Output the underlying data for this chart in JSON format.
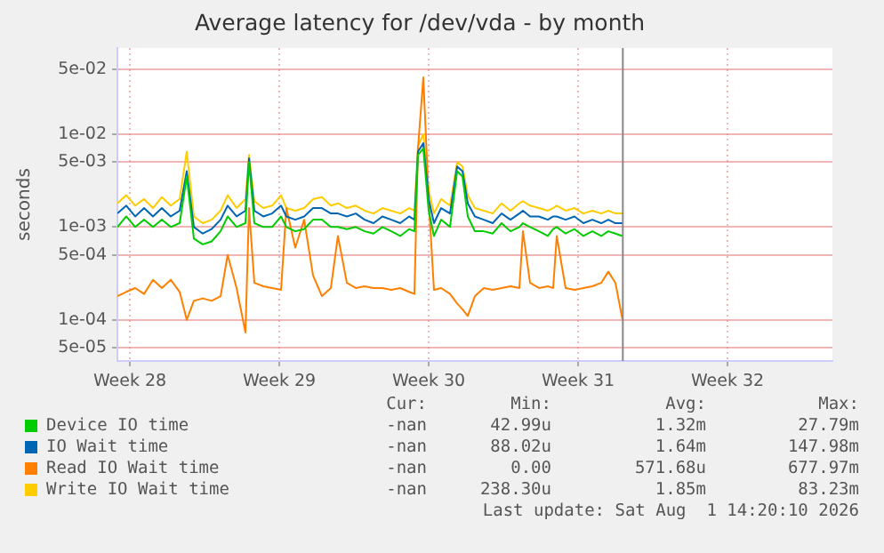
{
  "chart_data": {
    "type": "line",
    "title": "Average latency for /dev/vda - by month",
    "ylabel": "seconds",
    "log": "y",
    "grid": true,
    "legend": "bottom",
    "marker": "none",
    "line_style": "solid",
    "x": [
      "2026-07-08T22:00",
      "2026-07-09T08:00",
      "2026-07-09T18:00",
      "2026-07-10T04:00",
      "2026-07-10T14:00",
      "2026-07-11T00:00",
      "2026-07-11T10:00",
      "2026-07-11T20:00",
      "2026-07-12T04:00",
      "2026-07-12T12:00",
      "2026-07-12T22:00",
      "2026-07-13T08:00",
      "2026-07-13T18:00",
      "2026-07-14T02:00",
      "2026-07-14T12:00",
      "2026-07-14T22:00",
      "2026-07-15T02:00",
      "2026-07-15T08:00",
      "2026-07-15T18:00",
      "2026-07-16T04:00",
      "2026-07-16T14:00",
      "2026-07-16T20:00",
      "2026-07-17T06:00",
      "2026-07-17T16:00",
      "2026-07-18T02:00",
      "2026-07-18T12:00",
      "2026-07-18T22:00",
      "2026-07-19T06:00",
      "2026-07-19T16:00",
      "2026-07-20T02:00",
      "2026-07-20T12:00",
      "2026-07-20T22:00",
      "2026-07-21T08:00",
      "2026-07-21T18:00",
      "2026-07-22T04:00",
      "2026-07-22T14:00",
      "2026-07-22T20:00",
      "2026-07-23T00:00",
      "2026-07-23T06:00",
      "2026-07-23T12:00",
      "2026-07-23T18:00",
      "2026-07-24T02:00",
      "2026-07-24T12:00",
      "2026-07-24T20:00",
      "2026-07-25T02:00",
      "2026-07-25T08:00",
      "2026-07-25T16:00",
      "2026-07-26T02:00",
      "2026-07-26T12:00",
      "2026-07-26T22:00",
      "2026-07-27T08:00",
      "2026-07-27T18:00",
      "2026-07-27T22:00",
      "2026-07-28T06:00",
      "2026-07-28T16:00",
      "2026-07-29T02:00",
      "2026-07-29T08:00",
      "2026-07-29T12:00",
      "2026-07-29T22:00",
      "2026-07-30T08:00",
      "2026-07-30T18:00",
      "2026-07-31T04:00",
      "2026-07-31T14:00",
      "2026-07-31T22:00",
      "2026-08-01T06:00",
      "2026-08-01T14:00"
    ],
    "xlim": [
      "2026-07-08T22:00",
      "2026-08-11T10:00"
    ],
    "xticks": [
      {
        "value": "2026-07-09T12:00",
        "label": "Week 28"
      },
      {
        "value": "2026-07-16T12:00",
        "label": "Week 29"
      },
      {
        "value": "2026-07-23T12:00",
        "label": "Week 30"
      },
      {
        "value": "2026-07-30T12:00",
        "label": "Week 31"
      },
      {
        "value": "2026-08-06T12:00",
        "label": "Week 32"
      }
    ],
    "ylim": [
      3.6e-05,
      0.085
    ],
    "yticks": [
      {
        "value": 5e-05,
        "label": "5e-05"
      },
      {
        "value": 0.0001,
        "label": "1e-04"
      },
      {
        "value": 0.0005,
        "label": "5e-04"
      },
      {
        "value": 0.001,
        "label": "1e-03"
      },
      {
        "value": 0.005,
        "label": "5e-03"
      },
      {
        "value": 0.01,
        "label": "1e-02"
      },
      {
        "value": 0.05,
        "label": "5e-02"
      }
    ],
    "ref_lines": [
      {
        "axis": "x",
        "value": "2026-08-01T14:20",
        "color": "#888888"
      }
    ],
    "series": [
      {
        "name": "Device IO time",
        "color": "#00cc00",
        "values": [
          0.001,
          0.0013,
          0.001,
          0.0012,
          0.001,
          0.0012,
          0.001,
          0.0011,
          0.0035,
          0.00075,
          0.00065,
          0.0007,
          0.0009,
          0.0013,
          0.001,
          0.0011,
          0.005,
          0.0011,
          0.001,
          0.001,
          0.0013,
          0.001,
          0.0009,
          0.00095,
          0.0012,
          0.0012,
          0.001,
          0.001,
          0.00095,
          0.001,
          0.0009,
          0.00085,
          0.001,
          0.0009,
          0.0008,
          0.00095,
          0.0009,
          0.006,
          0.007,
          0.0015,
          0.0008,
          0.0012,
          0.001,
          0.004,
          0.0035,
          0.0013,
          0.0009,
          0.0009,
          0.00085,
          0.0011,
          0.0009,
          0.001,
          0.0011,
          0.001,
          0.0009,
          0.0008,
          0.00095,
          0.001,
          0.00085,
          0.00095,
          0.0008,
          0.0009,
          0.0008,
          0.0009,
          0.00085,
          0.0008
        ]
      },
      {
        "name": "IO Wait time",
        "color": "#0066b3",
        "values": [
          0.0014,
          0.0017,
          0.0013,
          0.0016,
          0.0013,
          0.0016,
          0.0013,
          0.0015,
          0.004,
          0.001,
          0.00085,
          0.00095,
          0.0012,
          0.0017,
          0.0013,
          0.0015,
          0.0055,
          0.0015,
          0.0013,
          0.0014,
          0.0017,
          0.0013,
          0.0012,
          0.0013,
          0.0016,
          0.0016,
          0.0014,
          0.0014,
          0.0013,
          0.0014,
          0.0012,
          0.0011,
          0.0013,
          0.0012,
          0.0011,
          0.0013,
          0.0012,
          0.0065,
          0.008,
          0.002,
          0.0011,
          0.0016,
          0.0014,
          0.0045,
          0.004,
          0.0018,
          0.0013,
          0.0012,
          0.0011,
          0.0014,
          0.0012,
          0.0014,
          0.0015,
          0.0013,
          0.0013,
          0.0012,
          0.0013,
          0.0013,
          0.0012,
          0.0013,
          0.0011,
          0.0012,
          0.0011,
          0.0012,
          0.0011,
          0.0011
        ]
      },
      {
        "name": "Read IO Wait time",
        "color": "#ff8000",
        "values": [
          0.00018,
          0.0002,
          0.00022,
          0.00019,
          0.00027,
          0.00022,
          0.00027,
          0.0002,
          0.0001,
          0.00016,
          0.00017,
          0.00016,
          0.00018,
          0.0005,
          0.00022,
          7.3e-05,
          0.0016,
          0.00025,
          0.00023,
          0.00022,
          0.00021,
          0.0016,
          0.0006,
          0.0012,
          0.0003,
          0.00018,
          0.00022,
          0.0008,
          0.00025,
          0.00022,
          0.00023,
          0.00022,
          0.00022,
          0.00021,
          0.00022,
          0.0002,
          0.00019,
          0.007,
          0.041,
          0.002,
          0.00021,
          0.00022,
          0.00019,
          0.00015,
          0.00013,
          0.00011,
          0.00018,
          0.00022,
          0.00021,
          0.00022,
          0.00023,
          0.00022,
          0.0009,
          0.00025,
          0.00022,
          0.00023,
          0.00022,
          0.0008,
          0.00022,
          0.00021,
          0.00022,
          0.00023,
          0.00025,
          0.00033,
          0.00025,
          0.0001
        ]
      },
      {
        "name": "Write IO Wait time",
        "color": "#ffcc00",
        "values": [
          0.0018,
          0.0022,
          0.0017,
          0.002,
          0.0016,
          0.0021,
          0.0017,
          0.002,
          0.0065,
          0.0013,
          0.0011,
          0.0012,
          0.0015,
          0.0022,
          0.0016,
          0.002,
          0.006,
          0.0019,
          0.0016,
          0.0017,
          0.0022,
          0.0016,
          0.0015,
          0.0016,
          0.002,
          0.0021,
          0.0017,
          0.0018,
          0.0016,
          0.0017,
          0.0015,
          0.0014,
          0.0016,
          0.0015,
          0.0014,
          0.0016,
          0.0015,
          0.0075,
          0.01,
          0.0025,
          0.0014,
          0.002,
          0.0017,
          0.005,
          0.0045,
          0.0022,
          0.0016,
          0.0015,
          0.0014,
          0.0018,
          0.0015,
          0.0018,
          0.0019,
          0.0017,
          0.0016,
          0.0015,
          0.0016,
          0.0017,
          0.0015,
          0.0016,
          0.0014,
          0.0015,
          0.0014,
          0.0015,
          0.0014,
          0.0014
        ]
      }
    ],
    "annotations": [
      "Cur:",
      "Min:",
      "Avg:",
      "Max:",
      "-nan",
      "42.99u",
      "1.32m",
      "27.79m",
      "-nan",
      "88.02u",
      "1.64m",
      "147.98m",
      "-nan",
      "0.00",
      "571.68u",
      "677.97m",
      "-nan",
      "238.30u",
      "1.85m",
      "83.23m",
      "Last update: Sat Aug  1 14:20:10 2026"
    ]
  }
}
